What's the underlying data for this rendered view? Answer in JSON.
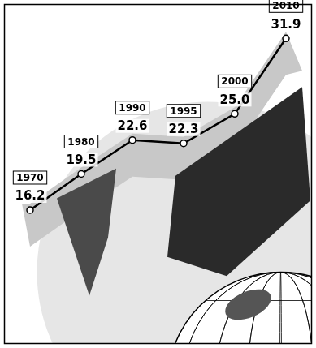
{
  "chart_data": {
    "type": "line",
    "categories": [
      "1970",
      "1980",
      "1990",
      "1995",
      "2000",
      "2010"
    ],
    "values": [
      16.2,
      19.5,
      22.6,
      22.3,
      25.0,
      31.9
    ],
    "value_labels": [
      "16.2",
      "19.5",
      "22.6",
      "22.3",
      "25.0",
      "31.9"
    ],
    "color": "#000000",
    "marker": "circle",
    "ylim": [
      4,
      35
    ],
    "grid": false,
    "tick_labels": false,
    "data_labels": true
  }
}
